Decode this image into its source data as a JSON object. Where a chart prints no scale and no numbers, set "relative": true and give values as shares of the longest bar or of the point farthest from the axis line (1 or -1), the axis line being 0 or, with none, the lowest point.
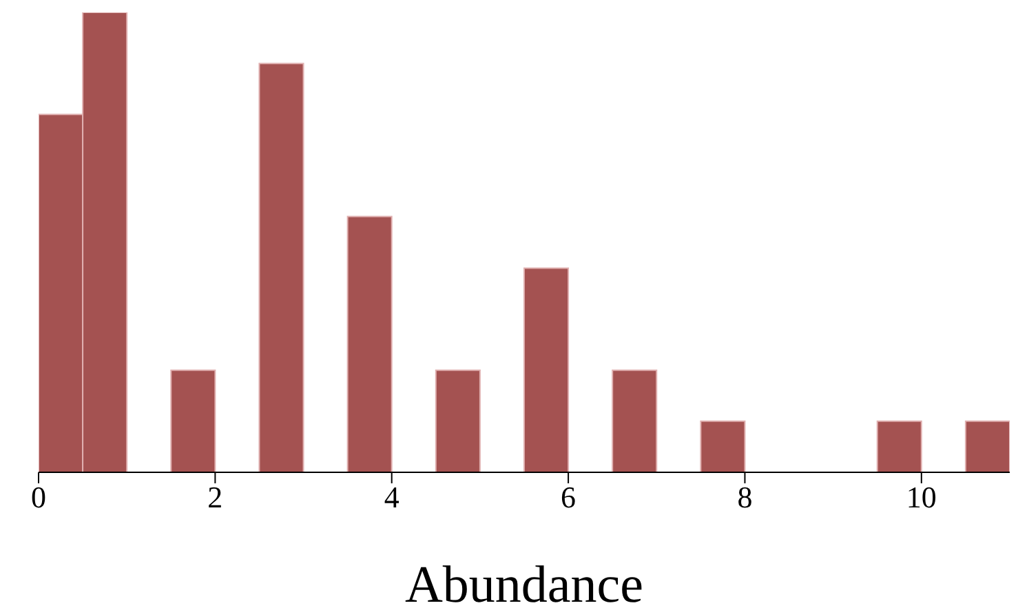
{
  "chart_data": {
    "type": "bar",
    "relative": true,
    "xlabel": "Abundance",
    "color": "#a45251",
    "x": [
      0.25,
      0.75,
      1.75,
      2.75,
      3.75,
      4.75,
      5.75,
      6.75,
      7.75,
      9.75,
      10.75
    ],
    "values": [
      0.778,
      1,
      0.222,
      0.889,
      0.556,
      0.222,
      0.444,
      0.222,
      0.111,
      0.111,
      0.111
    ],
    "xlim": [
      0,
      11
    ],
    "xticks": [
      0,
      2,
      4,
      6,
      8,
      10
    ],
    "grid": false,
    "legend": false
  }
}
